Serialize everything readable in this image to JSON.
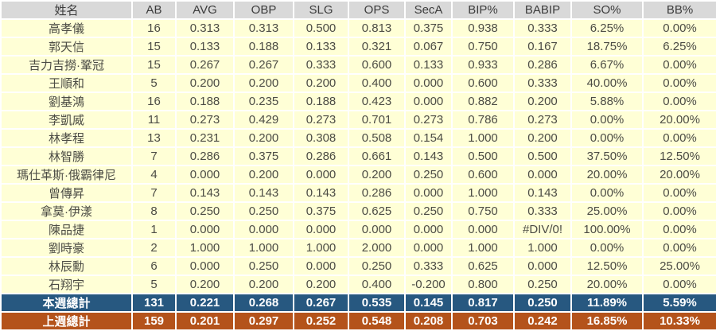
{
  "chart_data": {
    "type": "table",
    "columns": [
      "姓名",
      "AB",
      "AVG",
      "OBP",
      "SLG",
      "OPS",
      "SecA",
      "BIP%",
      "BABIP",
      "SO%",
      "BB%"
    ],
    "rows": [
      [
        "高孝儀",
        "16",
        "0.313",
        "0.313",
        "0.500",
        "0.813",
        "0.375",
        "0.938",
        "0.333",
        "6.25%",
        "0.00%"
      ],
      [
        "郭天信",
        "15",
        "0.133",
        "0.188",
        "0.133",
        "0.321",
        "0.067",
        "0.750",
        "0.167",
        "18.75%",
        "6.25%"
      ],
      [
        "吉力吉撈·鞏冠",
        "15",
        "0.267",
        "0.267",
        "0.333",
        "0.600",
        "0.133",
        "0.933",
        "0.286",
        "6.67%",
        "0.00%"
      ],
      [
        "王順和",
        "5",
        "0.200",
        "0.200",
        "0.200",
        "0.400",
        "0.000",
        "0.600",
        "0.333",
        "40.00%",
        "0.00%"
      ],
      [
        "劉基鴻",
        "16",
        "0.188",
        "0.235",
        "0.188",
        "0.423",
        "0.000",
        "0.882",
        "0.200",
        "5.88%",
        "0.00%"
      ],
      [
        "李凱威",
        "11",
        "0.273",
        "0.429",
        "0.273",
        "0.701",
        "0.273",
        "0.786",
        "0.273",
        "0.00%",
        "20.00%"
      ],
      [
        "林孝程",
        "13",
        "0.231",
        "0.200",
        "0.308",
        "0.508",
        "0.154",
        "1.000",
        "0.200",
        "0.00%",
        "0.00%"
      ],
      [
        "林智勝",
        "7",
        "0.286",
        "0.375",
        "0.286",
        "0.661",
        "0.143",
        "0.500",
        "0.500",
        "37.50%",
        "12.50%"
      ],
      [
        "瑪仕革斯·俄霸律尼",
        "4",
        "0.000",
        "0.200",
        "0.000",
        "0.200",
        "0.250",
        "0.600",
        "0.000",
        "20.00%",
        "20.00%"
      ],
      [
        "曾傳昇",
        "7",
        "0.143",
        "0.143",
        "0.143",
        "0.286",
        "0.000",
        "1.000",
        "0.143",
        "0.00%",
        "0.00%"
      ],
      [
        "拿莫·伊漾",
        "8",
        "0.250",
        "0.250",
        "0.375",
        "0.625",
        "0.250",
        "0.750",
        "0.333",
        "25.00%",
        "0.00%"
      ],
      [
        "陳品捷",
        "1",
        "0.000",
        "0.000",
        "0.000",
        "0.000",
        "0.000",
        "0.000",
        "#DIV/0!",
        "100.00%",
        "0.00%"
      ],
      [
        "劉時豪",
        "2",
        "1.000",
        "1.000",
        "1.000",
        "2.000",
        "0.000",
        "1.000",
        "1.000",
        "0.00%",
        "0.00%"
      ],
      [
        "林辰勳",
        "6",
        "0.000",
        "0.250",
        "0.000",
        "0.250",
        "0.333",
        "0.625",
        "0.000",
        "12.50%",
        "25.00%"
      ],
      [
        "石翔宇",
        "5",
        "0.200",
        "0.200",
        "0.200",
        "0.400",
        "-0.200",
        "0.800",
        "0.250",
        "20.00%",
        "0.00%"
      ]
    ],
    "totals": [
      {
        "label": "本週總計",
        "style": "current-week",
        "values": [
          "131",
          "0.221",
          "0.268",
          "0.267",
          "0.535",
          "0.145",
          "0.817",
          "0.250",
          "11.89%",
          "5.59%"
        ]
      },
      {
        "label": "上週總計",
        "style": "previous-week",
        "values": [
          "159",
          "0.201",
          "0.297",
          "0.252",
          "0.548",
          "0.208",
          "0.703",
          "0.242",
          "16.85%",
          "10.33%"
        ]
      }
    ]
  },
  "colors": {
    "header_bg": "#D9D9D9",
    "row_bg": "#FFFFD6",
    "text": "#4C4C45",
    "grid": "#FFFFFF",
    "current_week_bg": "#275880",
    "previous_week_bg": "#B4531B",
    "totals_text": "#FFFFFF"
  }
}
